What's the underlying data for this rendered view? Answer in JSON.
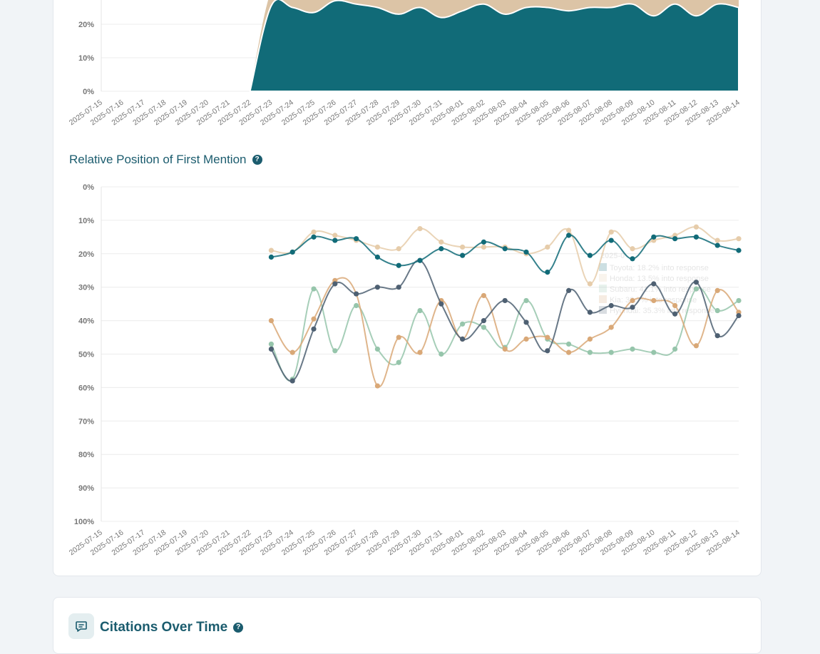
{
  "dates": [
    "2025-07-15",
    "2025-07-16",
    "2025-07-17",
    "2025-07-18",
    "2025-07-19",
    "2025-07-20",
    "2025-07-21",
    "2025-07-22",
    "2025-07-23",
    "2025-07-24",
    "2025-07-25",
    "2025-07-26",
    "2025-07-27",
    "2025-07-28",
    "2025-07-29",
    "2025-07-30",
    "2025-07-31",
    "2025-08-01",
    "2025-08-02",
    "2025-08-03",
    "2025-08-04",
    "2025-08-05",
    "2025-08-06",
    "2025-08-07",
    "2025-08-08",
    "2025-08-09",
    "2025-08-10",
    "2025-08-11",
    "2025-08-12",
    "2025-08-13",
    "2025-08-14"
  ],
  "top_chart": {
    "y_ticks": [
      "0%",
      "10%",
      "20%"
    ],
    "colors": {
      "fill_dark": "#116b78",
      "fill_light": "#dcc4a6"
    },
    "chart_data": {
      "type": "area",
      "ylim": [
        0,
        30
      ],
      "x": [
        "2025-07-15",
        "2025-07-16",
        "2025-07-17",
        "2025-07-18",
        "2025-07-19",
        "2025-07-20",
        "2025-07-21",
        "2025-07-22",
        "2025-07-23",
        "2025-07-24",
        "2025-07-25",
        "2025-07-26",
        "2025-07-27",
        "2025-07-28",
        "2025-07-29",
        "2025-07-30",
        "2025-07-31",
        "2025-08-01",
        "2025-08-02",
        "2025-08-03",
        "2025-08-04",
        "2025-08-05",
        "2025-08-06",
        "2025-08-07",
        "2025-08-08",
        "2025-08-09",
        "2025-08-10",
        "2025-08-11",
        "2025-08-12",
        "2025-08-13",
        "2025-08-14"
      ],
      "series": [
        {
          "color": "#116b78",
          "values": [
            null,
            null,
            null,
            null,
            null,
            null,
            null,
            0,
            25.5,
            25,
            23.5,
            27,
            26,
            25,
            23,
            25,
            22,
            24,
            26,
            23,
            25,
            25,
            24,
            25,
            25,
            26,
            22.5,
            26,
            22.5,
            26,
            25
          ]
        },
        {
          "color": "#dcc4a6",
          "values": [
            null,
            null,
            null,
            null,
            null,
            null,
            null,
            0,
            30,
            30,
            30,
            30,
            30,
            30,
            30,
            30,
            30,
            30,
            30,
            30,
            30,
            30,
            30,
            30,
            30,
            30,
            30,
            30,
            30,
            30,
            30
          ]
        }
      ]
    }
  },
  "position_chart": {
    "title": "Relative Position of First Mention",
    "help": "?",
    "y_ticks": [
      "0%",
      "10%",
      "20%",
      "30%",
      "40%",
      "50%",
      "60%",
      "70%",
      "80%",
      "90%",
      "100%"
    ],
    "tooltip": {
      "title": "2025-0",
      "rows": [
        {
          "text": "Toyota: 18.2% into response",
          "color": "#116b78"
        },
        {
          "text": "Honda: 13.5% into response",
          "color": "#e6ccaa"
        },
        {
          "text": "Subaru: 41.1% into response",
          "color": "#96c5ab"
        },
        {
          "text": "Kia: 33.7% into response",
          "color": "#d9a877"
        },
        {
          "text": "Hyundai: 35.3% into response",
          "color": "#4e6072"
        }
      ]
    },
    "chart_data": {
      "type": "line",
      "title": "Relative Position of First Mention",
      "ylim": [
        0,
        100
      ],
      "x": [
        "2025-07-15",
        "2025-07-16",
        "2025-07-17",
        "2025-07-18",
        "2025-07-19",
        "2025-07-20",
        "2025-07-21",
        "2025-07-22",
        "2025-07-23",
        "2025-07-24",
        "2025-07-25",
        "2025-07-26",
        "2025-07-27",
        "2025-07-28",
        "2025-07-29",
        "2025-07-30",
        "2025-07-31",
        "2025-08-01",
        "2025-08-02",
        "2025-08-03",
        "2025-08-04",
        "2025-08-05",
        "2025-08-06",
        "2025-08-07",
        "2025-08-08",
        "2025-08-09",
        "2025-08-10",
        "2025-08-11",
        "2025-08-12",
        "2025-08-13",
        "2025-08-14"
      ],
      "series": [
        {
          "color": "#e6ccaa",
          "values": [
            null,
            null,
            null,
            null,
            null,
            null,
            null,
            null,
            19,
            19.5,
            13.5,
            14.5,
            16,
            18,
            18.5,
            12.5,
            16.5,
            18,
            18,
            18,
            20,
            18,
            13,
            29,
            13.5,
            18.5,
            16,
            14.5,
            12,
            16,
            15.5
          ]
        },
        {
          "color": "#96c5ab",
          "values": [
            null,
            null,
            null,
            null,
            null,
            null,
            null,
            null,
            47,
            57.5,
            30.5,
            49,
            35.5,
            48.5,
            52.5,
            37,
            50,
            41,
            42,
            48,
            34,
            45.5,
            47,
            49.5,
            49.5,
            48.5,
            49.5,
            48.5,
            30.5,
            37,
            34
          ]
        },
        {
          "color": "#d9a877",
          "values": [
            null,
            null,
            null,
            null,
            null,
            null,
            null,
            null,
            40,
            49.5,
            39.5,
            28,
            32,
            59.5,
            45,
            49.5,
            34,
            45.5,
            32.5,
            48.5,
            45.5,
            45,
            49.5,
            45.5,
            42,
            34,
            34,
            35.5,
            47.5,
            31,
            37.5
          ]
        },
        {
          "color": "#4e6072",
          "values": [
            null,
            null,
            null,
            null,
            null,
            null,
            null,
            null,
            48.5,
            58,
            42.5,
            29,
            32,
            30,
            30,
            22,
            35,
            45.5,
            40,
            34,
            40.5,
            49,
            31,
            37.5,
            35.5,
            36,
            29,
            38,
            28.5,
            44.5,
            38.5
          ]
        },
        {
          "color": "#116b78",
          "values": [
            null,
            null,
            null,
            null,
            null,
            null,
            null,
            null,
            21,
            19.5,
            15,
            16,
            15.5,
            21,
            23.5,
            22,
            18.5,
            20.5,
            16.5,
            18.5,
            19.5,
            25.5,
            14.5,
            20.5,
            16,
            21.5,
            15,
            15.5,
            15,
            17.5,
            19
          ]
        }
      ]
    }
  },
  "citations": {
    "title": "Citations Over Time",
    "help": "?"
  }
}
